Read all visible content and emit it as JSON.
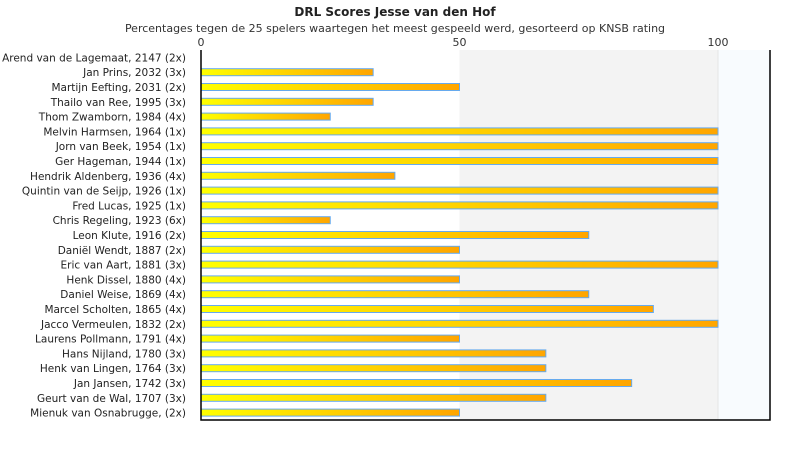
{
  "chart_data": {
    "type": "bar",
    "orientation": "horizontal",
    "title": "DRL Scores Jesse van den Hof",
    "subtitle": "Percentages tegen de 25 spelers waartegen het meest gespeeld werd, gesorteerd op KNSB rating",
    "xlabel": "",
    "ylabel": "",
    "xlim": [
      0,
      110
    ],
    "xticks": [
      0,
      50,
      100
    ],
    "categories": [
      "Arend van de Lagemaat, 2147 (2x)",
      "Jan Prins, 2032 (3x)",
      "Martijn Eefting, 2031 (2x)",
      "Thailo van Ree, 1995 (3x)",
      "Thom Zwamborn, 1984 (4x)",
      "Melvin Harmsen, 1964 (1x)",
      "Jorn van Beek, 1954 (1x)",
      "Ger Hageman, 1944 (1x)",
      "Hendrik Aldenberg, 1936 (4x)",
      "Quintin van de Seijp, 1926 (1x)",
      "Fred Lucas, 1925 (1x)",
      "Chris Regeling, 1923 (6x)",
      "Leon Klute, 1916 (2x)",
      "Daniël Wendt, 1887 (2x)",
      "Eric van Aart, 1881 (3x)",
      "Henk Dissel, 1880 (4x)",
      "Daniel Weise, 1869 (4x)",
      "Marcel Scholten, 1865 (4x)",
      "Jacco Vermeulen, 1832 (2x)",
      "Laurens Pollmann, 1791 (4x)",
      "Hans Nijland, 1780 (3x)",
      "Henk van Lingen, 1764 (3x)",
      "Jan Jansen, 1742 (3x)",
      "Geurt van de Wal, 1707 (3x)",
      "Mienuk van Osnabrugge,  (2x)"
    ],
    "values": [
      0,
      33.3,
      50,
      33.3,
      25,
      100,
      100,
      100,
      37.5,
      100,
      100,
      25,
      75,
      50,
      100,
      50,
      75,
      87.5,
      100,
      50,
      66.7,
      66.7,
      83.3,
      66.7,
      50
    ],
    "colors": {
      "bar_start": "#ffff00",
      "bar_end": "#ffa500",
      "bar_border": "#66aaee",
      "band_50_100": "#f3f3f3",
      "band_100_plus": "#f8fbfe"
    }
  }
}
